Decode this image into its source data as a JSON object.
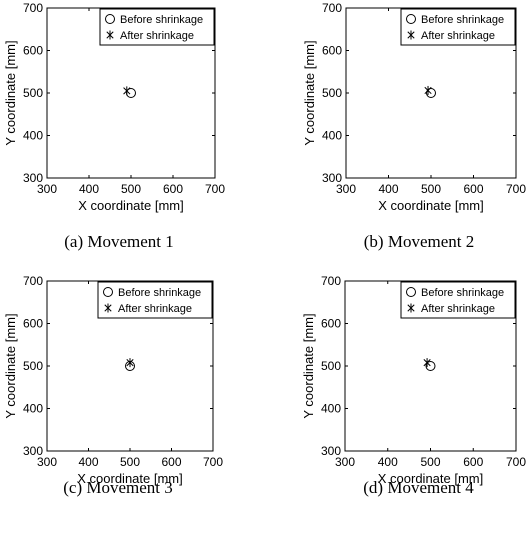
{
  "chart_data": [
    {
      "type": "scatter",
      "caption": "(a) Movement 1",
      "xlabel": "X coordinate [mm]",
      "ylabel": "Y coordinate [mm]",
      "xlim": [
        300,
        700
      ],
      "ylim": [
        300,
        700
      ],
      "xticks": [
        "300",
        "400",
        "500",
        "600",
        "700"
      ],
      "yticks": [
        "300",
        "400",
        "500",
        "600",
        "700"
      ],
      "legend_position": "top-right",
      "series": [
        {
          "name": "Before shrinkage",
          "marker": "circle",
          "points": [
            [
              500,
              500
            ]
          ]
        },
        {
          "name": "After shrinkage",
          "marker": "asterisk",
          "points": [
            [
              490,
              505
            ]
          ]
        }
      ]
    },
    {
      "type": "scatter",
      "caption": "(b) Movement 2",
      "xlabel": "X coordinate [mm]",
      "ylabel": "Y coordinate [mm]",
      "xlim": [
        300,
        700
      ],
      "ylim": [
        300,
        700
      ],
      "xticks": [
        "300",
        "400",
        "500",
        "600",
        "700"
      ],
      "yticks": [
        "300",
        "400",
        "500",
        "600",
        "700"
      ],
      "legend_position": "top-right",
      "series": [
        {
          "name": "Before shrinkage",
          "marker": "circle",
          "points": [
            [
              500,
              500
            ]
          ]
        },
        {
          "name": "After shrinkage",
          "marker": "asterisk",
          "points": [
            [
              493,
              506
            ]
          ]
        }
      ]
    },
    {
      "type": "scatter",
      "caption": "(c) Movement 3",
      "xlabel": "X coordinate [mm]",
      "ylabel": "Y coordinate [mm]",
      "xlim": [
        300,
        700
      ],
      "ylim": [
        300,
        700
      ],
      "xticks": [
        "300",
        "400",
        "500",
        "600",
        "700"
      ],
      "yticks": [
        "300",
        "400",
        "500",
        "600",
        "700"
      ],
      "legend_position": "top-right",
      "series": [
        {
          "name": "Before shrinkage",
          "marker": "circle",
          "points": [
            [
              500,
              500
            ]
          ]
        },
        {
          "name": "After shrinkage",
          "marker": "asterisk",
          "points": [
            [
              500,
              508
            ]
          ]
        }
      ]
    },
    {
      "type": "scatter",
      "caption": "(d) Movement 4",
      "xlabel": "X coordinate [mm]",
      "ylabel": "Y coordinate [mm]",
      "xlim": [
        300,
        700
      ],
      "ylim": [
        300,
        700
      ],
      "xticks": [
        "300",
        "400",
        "500",
        "600",
        "700"
      ],
      "yticks": [
        "300",
        "400",
        "500",
        "600",
        "700"
      ],
      "legend_position": "top-right",
      "series": [
        {
          "name": "Before shrinkage",
          "marker": "circle",
          "points": [
            [
              500,
              500
            ]
          ]
        },
        {
          "name": "After shrinkage",
          "marker": "asterisk",
          "points": [
            [
              492,
              508
            ]
          ]
        }
      ]
    }
  ]
}
